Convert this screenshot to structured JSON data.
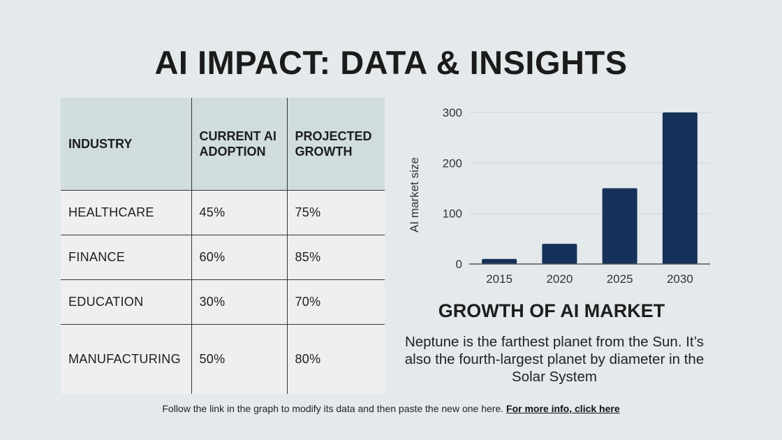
{
  "title": "AI IMPACT: DATA & INSIGHTS",
  "table": {
    "headers": [
      "INDUSTRY",
      "CURRENT AI ADOPTION",
      "PROJECTED GROWTH"
    ],
    "rows": [
      [
        "HEALTHCARE",
        "45%",
        "75%"
      ],
      [
        "FINANCE",
        "60%",
        "85%"
      ],
      [
        "EDUCATION",
        "30%",
        "70%"
      ],
      [
        "MANUFACTURING",
        "50%",
        "80%"
      ]
    ]
  },
  "chart_data": {
    "type": "bar",
    "title": "GROWTH OF AI MARKET",
    "categories": [
      "2015",
      "2020",
      "2025",
      "2030"
    ],
    "values": [
      10,
      40,
      150,
      300
    ],
    "xlabel": "",
    "ylabel": "AI market size",
    "ylim": [
      0,
      300
    ],
    "yticks": [
      "0",
      "100",
      "200",
      "300"
    ],
    "grid": true,
    "bar_color": "#17325a"
  },
  "description": "Neptune is the farthest planet from the Sun. It’s also the fourth-largest planet by diameter in the Solar System",
  "footer": {
    "text": "Follow the link in the graph to modify its data and then paste the new one here. ",
    "link": "For more info, click here"
  }
}
